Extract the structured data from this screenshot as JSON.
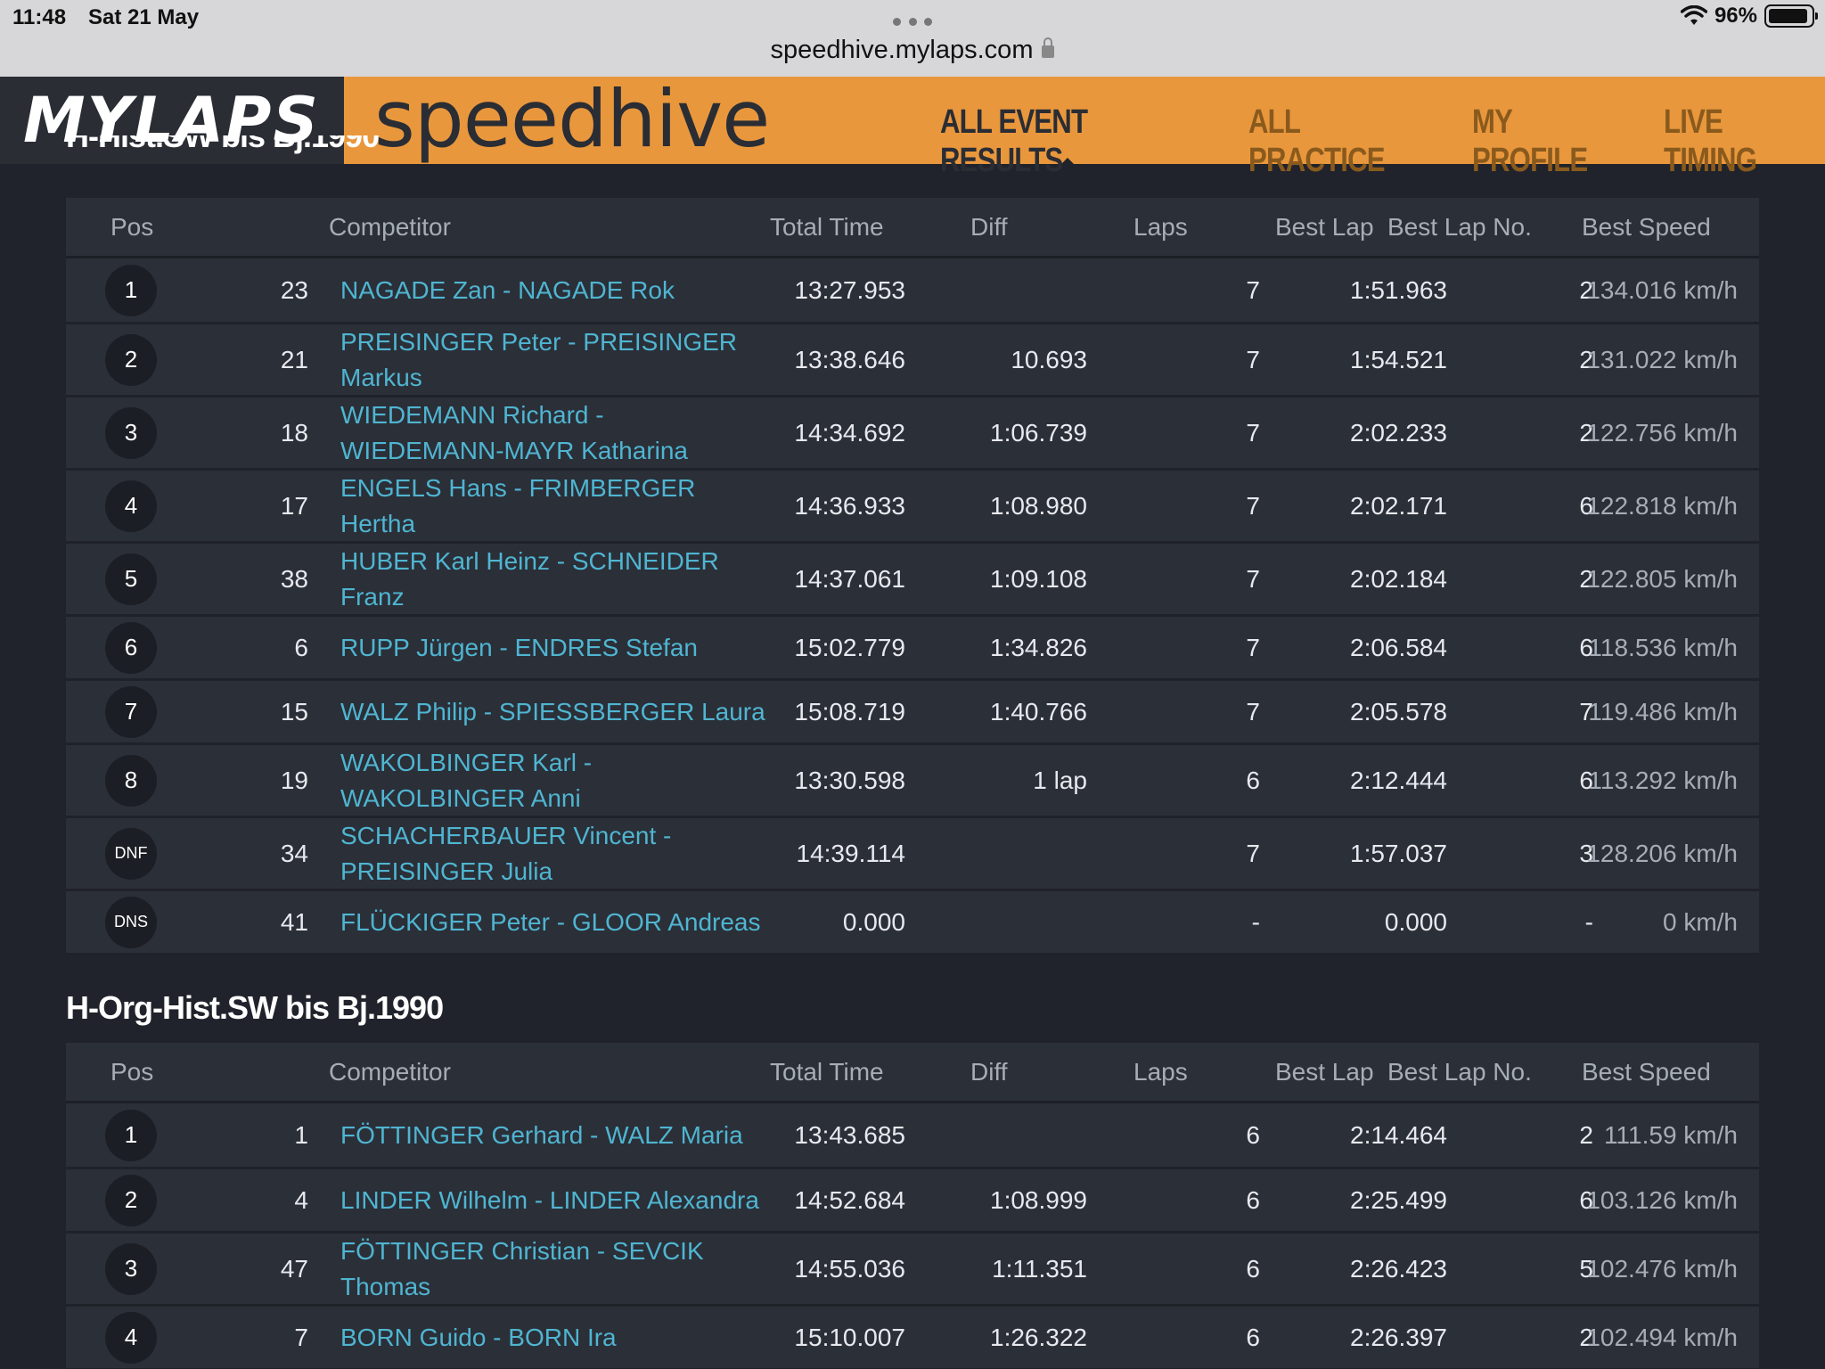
{
  "status": {
    "time": "11:48",
    "date": "Sat 21 May",
    "url": "speedhive.mylaps.com",
    "battery": "96%"
  },
  "header": {
    "logo": "MYLAPS",
    "brand": "speedhive",
    "nav": [
      "ALL EVENT RESULTS",
      "ALL PRACTICE",
      "MY PROFILE",
      "LIVE TIMING"
    ]
  },
  "columns": [
    "Pos",
    "Competitor",
    "Total Time",
    "Diff",
    "Laps",
    "Best Lap",
    "Best Lap No.",
    "Best Speed"
  ],
  "sections": [
    {
      "title": "H-Hist.SW bis Bj.1990",
      "rows": [
        {
          "pos": "1",
          "no": "23",
          "competitor": "NAGADE Zan - NAGADE Rok",
          "total": "13:27.953",
          "diff": "",
          "laps": "7",
          "best_lap": "1:51.963",
          "best_lap_no": "2",
          "best_speed": "134.016 km/h"
        },
        {
          "pos": "2",
          "no": "21",
          "competitor": "PREISINGER Peter - PREISINGER Markus",
          "total": "13:38.646",
          "diff": "10.693",
          "laps": "7",
          "best_lap": "1:54.521",
          "best_lap_no": "2",
          "best_speed": "131.022 km/h"
        },
        {
          "pos": "3",
          "no": "18",
          "competitor": "WIEDEMANN Richard - WIEDEMANN-MAYR Katharina",
          "total": "14:34.692",
          "diff": "1:06.739",
          "laps": "7",
          "best_lap": "2:02.233",
          "best_lap_no": "2",
          "best_speed": "122.756 km/h"
        },
        {
          "pos": "4",
          "no": "17",
          "competitor": "ENGELS Hans - FRIMBERGER Hertha",
          "total": "14:36.933",
          "diff": "1:08.980",
          "laps": "7",
          "best_lap": "2:02.171",
          "best_lap_no": "6",
          "best_speed": "122.818 km/h"
        },
        {
          "pos": "5",
          "no": "38",
          "competitor": "HUBER Karl Heinz - SCHNEIDER Franz",
          "total": "14:37.061",
          "diff": "1:09.108",
          "laps": "7",
          "best_lap": "2:02.184",
          "best_lap_no": "2",
          "best_speed": "122.805 km/h"
        },
        {
          "pos": "6",
          "no": "6",
          "competitor": "RUPP Jürgen - ENDRES Stefan",
          "total": "15:02.779",
          "diff": "1:34.826",
          "laps": "7",
          "best_lap": "2:06.584",
          "best_lap_no": "6",
          "best_speed": "118.536 km/h"
        },
        {
          "pos": "7",
          "no": "15",
          "competitor": "WALZ Philip - SPIESSBERGER Laura",
          "total": "15:08.719",
          "diff": "1:40.766",
          "laps": "7",
          "best_lap": "2:05.578",
          "best_lap_no": "7",
          "best_speed": "119.486 km/h"
        },
        {
          "pos": "8",
          "no": "19",
          "competitor": "WAKOLBINGER Karl - WAKOLBINGER Anni",
          "total": "13:30.598",
          "diff": "1 lap",
          "laps": "6",
          "best_lap": "2:12.444",
          "best_lap_no": "6",
          "best_speed": "113.292 km/h"
        },
        {
          "pos": "DNF",
          "no": "34",
          "competitor": "SCHACHERBAUER Vincent - PREISINGER Julia",
          "total": "14:39.114",
          "diff": "",
          "laps": "7",
          "best_lap": "1:57.037",
          "best_lap_no": "3",
          "best_speed": "128.206 km/h"
        },
        {
          "pos": "DNS",
          "no": "41",
          "competitor": "FLÜCKIGER Peter - GLOOR Andreas",
          "total": "0.000",
          "diff": "",
          "laps": "-",
          "best_lap": "0.000",
          "best_lap_no": "-",
          "best_speed": "0 km/h"
        }
      ]
    },
    {
      "title": "H-Org-Hist.SW bis Bj.1990",
      "rows": [
        {
          "pos": "1",
          "no": "1",
          "competitor": "FÖTTINGER Gerhard - WALZ Maria",
          "total": "13:43.685",
          "diff": "",
          "laps": "6",
          "best_lap": "2:14.464",
          "best_lap_no": "2",
          "best_speed": "111.59 km/h"
        },
        {
          "pos": "2",
          "no": "4",
          "competitor": "LINDER Wilhelm - LINDER Alexandra",
          "total": "14:52.684",
          "diff": "1:08.999",
          "laps": "6",
          "best_lap": "2:25.499",
          "best_lap_no": "6",
          "best_speed": "103.126 km/h"
        },
        {
          "pos": "3",
          "no": "47",
          "competitor": "FÖTTINGER Christian - SEVCIK Thomas",
          "total": "14:55.036",
          "diff": "1:11.351",
          "laps": "6",
          "best_lap": "2:26.423",
          "best_lap_no": "5",
          "best_speed": "102.476 km/h"
        },
        {
          "pos": "4",
          "no": "7",
          "competitor": "BORN Guido - BORN Ira",
          "total": "15:10.007",
          "diff": "1:26.322",
          "laps": "6",
          "best_lap": "2:26.397",
          "best_lap_no": "2",
          "best_speed": "102.494 km/h"
        }
      ]
    }
  ]
}
